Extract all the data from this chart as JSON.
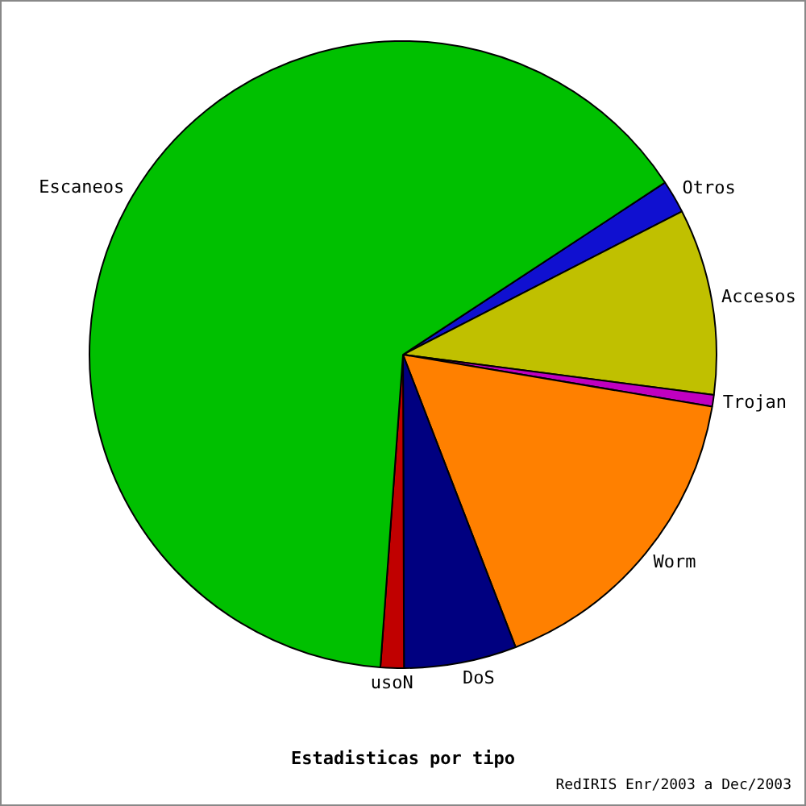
{
  "chart_data": {
    "type": "pie",
    "title": "Estadisticas por tipo",
    "annotations": [
      "RedIRIS Enr/2003 a Dec/2003"
    ],
    "categories": [
      "Otros",
      "Accesos",
      "Trojan",
      "Worm",
      "DoS",
      "usoN",
      "Escaneos"
    ],
    "values": [
      1.7,
      9.6,
      0.6,
      16.5,
      5.8,
      1.2,
      64.6
    ],
    "colors": [
      "#1010d0",
      "#c0c000",
      "#c000c0",
      "#ff8000",
      "#000080",
      "#c00000",
      "#00c000"
    ],
    "legend": false
  }
}
